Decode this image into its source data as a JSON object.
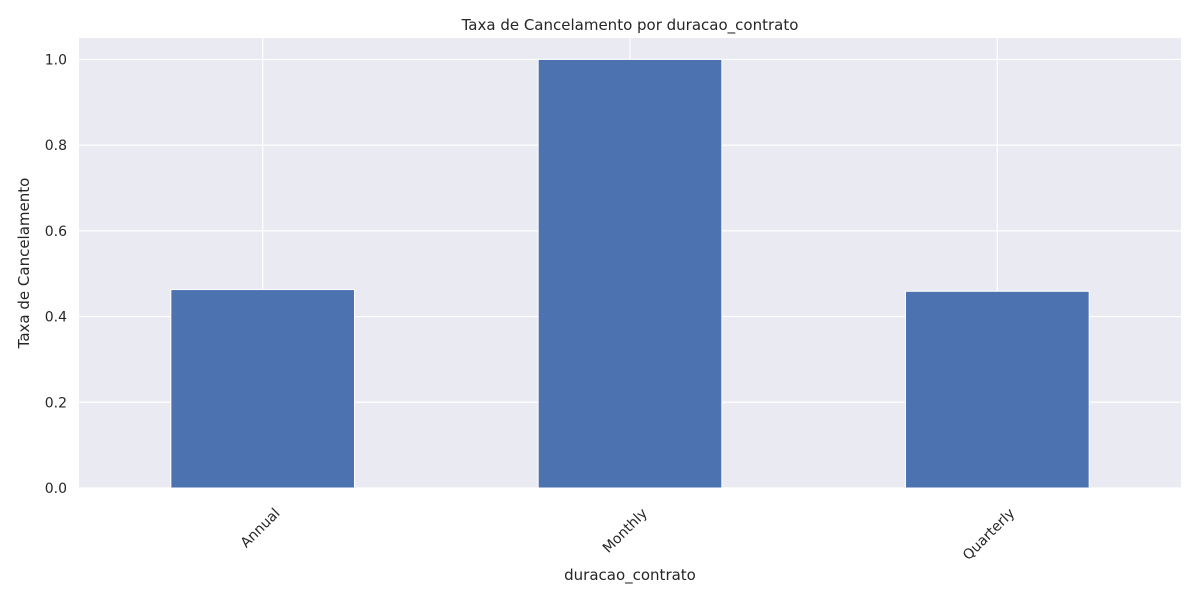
{
  "chart_data": {
    "type": "bar",
    "title": "Taxa de Cancelamento por duracao_contrato",
    "xlabel": "duracao_contrato",
    "ylabel": "Taxa de Cancelamento",
    "categories": [
      "Annual",
      "Monthly",
      "Quarterly"
    ],
    "values": [
      0.463,
      1.0,
      0.459
    ],
    "ylim": [
      0,
      1.05
    ],
    "yticks": [
      "0.0",
      "0.2",
      "0.4",
      "0.6",
      "0.8",
      "1.0"
    ],
    "grid": true,
    "legend": "none",
    "colors": {
      "bar": "#4c72b0",
      "plot_background": "#eaeaf2",
      "grid": "#ffffff",
      "text": "#262626"
    }
  }
}
